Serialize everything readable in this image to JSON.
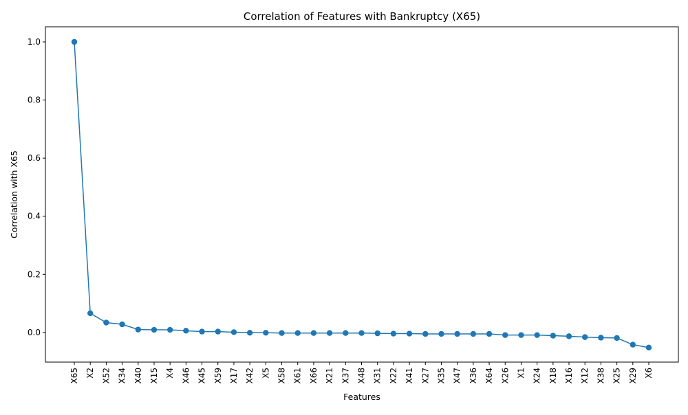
{
  "chart_data": {
    "type": "line",
    "title": "Correlation of Features with Bankruptcy (X65)",
    "xlabel": "Features",
    "ylabel": "Correlation with X65",
    "categories": [
      "X65",
      "X2",
      "X52",
      "X34",
      "X40",
      "X15",
      "X4",
      "X46",
      "X45",
      "X59",
      "X17",
      "X42",
      "X5",
      "X58",
      "X61",
      "X66",
      "X21",
      "X37",
      "X48",
      "X31",
      "X22",
      "X41",
      "X27",
      "X35",
      "X47",
      "X36",
      "X64",
      "X26",
      "X1",
      "X24",
      "X18",
      "X16",
      "X12",
      "X38",
      "X25",
      "X29",
      "X6"
    ],
    "series": [
      {
        "values": [
          1.0,
          0.066,
          0.034,
          0.028,
          0.01,
          0.009,
          0.009,
          0.006,
          0.003,
          0.003,
          0.001,
          -0.001,
          -0.001,
          -0.002,
          -0.002,
          -0.002,
          -0.002,
          -0.002,
          -0.002,
          -0.003,
          -0.004,
          -0.004,
          -0.005,
          -0.005,
          -0.005,
          -0.005,
          -0.005,
          -0.009,
          -0.009,
          -0.009,
          -0.011,
          -0.013,
          -0.016,
          -0.018,
          -0.019,
          -0.042,
          -0.052
        ],
        "color": "#1f77b4"
      }
    ],
    "ylim": [
      -0.102,
      1.052
    ],
    "yticks": [
      0.0,
      0.2,
      0.4,
      0.6,
      0.8,
      1.0
    ],
    "ytick_labels": [
      "0.0",
      "0.2",
      "0.4",
      "0.6",
      "0.8",
      "1.0"
    ],
    "grid": false,
    "marker": "circle"
  }
}
